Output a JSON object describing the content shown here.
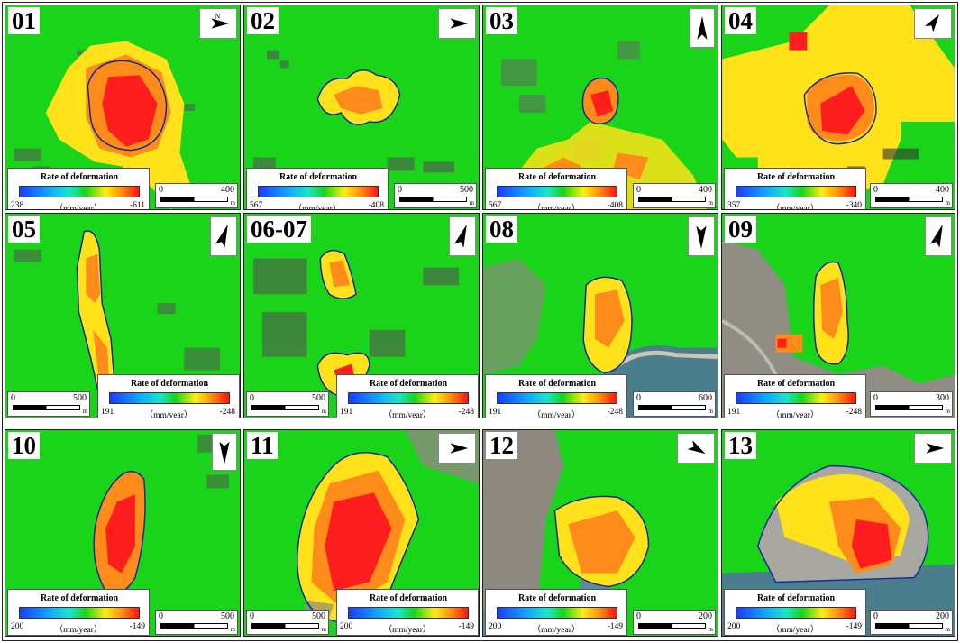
{
  "legend_title": "Rate of deformation",
  "legend_unit": "（mm/year）",
  "scale_unit": "m",
  "colors": {
    "stable": "#19d419",
    "yellow": "#ffe21a",
    "orange": "#ff8c1a",
    "red": "#ff1e1e",
    "outline": "#1a2a9a"
  },
  "panels": [
    {
      "id": "01",
      "min": "238",
      "max": "-611",
      "scale": "400",
      "north": "east"
    },
    {
      "id": "02",
      "min": "567",
      "max": "-408",
      "scale": "500",
      "north": "east"
    },
    {
      "id": "03",
      "min": "567",
      "max": "-408",
      "scale": "400",
      "north": "north"
    },
    {
      "id": "04",
      "min": "357",
      "max": "-340",
      "scale": "400",
      "north": "north"
    },
    {
      "id": "05",
      "min": "191",
      "max": "-248",
      "scale": "500",
      "north": "north"
    },
    {
      "id": "06-07",
      "min": "191",
      "max": "-248",
      "scale": "500",
      "north": "north"
    },
    {
      "id": "08",
      "min": "191",
      "max": "-248",
      "scale": "600",
      "north": "south"
    },
    {
      "id": "09",
      "min": "191",
      "max": "-248",
      "scale": "300",
      "north": "north"
    },
    {
      "id": "10",
      "min": "200",
      "max": "-149",
      "scale": "500",
      "north": "south"
    },
    {
      "id": "11",
      "min": "200",
      "max": "-149",
      "scale": "500",
      "north": "east"
    },
    {
      "id": "12",
      "min": "200",
      "max": "-149",
      "scale": "200",
      "north": "east"
    },
    {
      "id": "13",
      "min": "200",
      "max": "-149",
      "scale": "200",
      "north": "east"
    }
  ]
}
